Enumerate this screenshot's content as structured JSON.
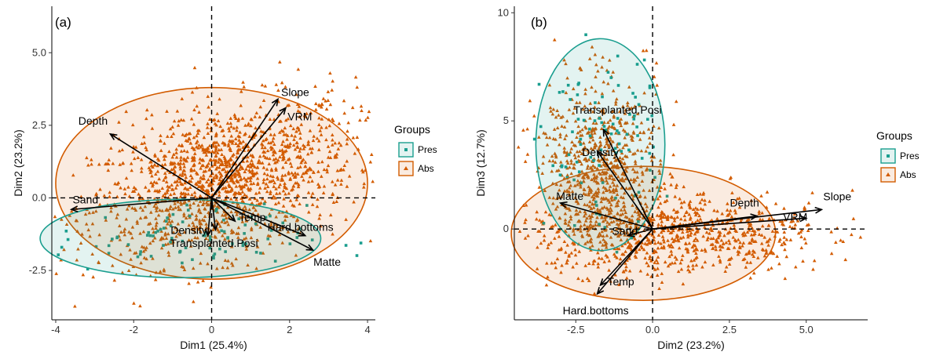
{
  "colors": {
    "pres": "#1a9e8f",
    "abs": "#d35c00",
    "arrow": "#000000",
    "axis": "#000000"
  },
  "legend": {
    "title": "Groups",
    "items": [
      "Pres",
      "Abs"
    ]
  },
  "chart_data": [
    {
      "type": "scatter",
      "panel_label": "(a)",
      "xlabel": "Dim1 (25.4%)",
      "ylabel": "Dim2 (23.2%)",
      "xlim": [
        -4.1,
        4.2
      ],
      "ylim": [
        -4.2,
        6.6
      ],
      "xticks": [
        -4,
        -2,
        0,
        2,
        4
      ],
      "xtick_labels": [
        "-4",
        "-2",
        "0",
        "2",
        "4"
      ],
      "yticks": [
        -2.5,
        0,
        2.5,
        5
      ],
      "ytick_labels": [
        "-2.5",
        "0.0",
        "2.5",
        "5.0"
      ],
      "arrows": [
        {
          "label": "Slope",
          "x": 1.7,
          "y": 3.4
        },
        {
          "label": "VRM",
          "x": 1.9,
          "y": 3.1
        },
        {
          "label": "Depth",
          "x": -2.6,
          "y": 2.2
        },
        {
          "label": "Sand",
          "x": -3.6,
          "y": -0.4
        },
        {
          "label": "Density",
          "x": -0.1,
          "y": -1.3
        },
        {
          "label": "Temp",
          "x": 0.6,
          "y": -0.8
        },
        {
          "label": "Transplanted.Posi",
          "x": 0.1,
          "y": -1.1
        },
        {
          "label": "Hard.bottoms",
          "x": 2.4,
          "y": -1.3
        },
        {
          "label": "Matte",
          "x": 2.6,
          "y": -1.8
        }
      ],
      "ellipses": [
        {
          "group": "Abs",
          "cx": 0.0,
          "cy": 0.5,
          "rx": 4.0,
          "ry": 3.3
        },
        {
          "group": "Pres",
          "cx": -0.8,
          "cy": -1.4,
          "rx": 3.6,
          "ry": 1.35
        }
      ]
    },
    {
      "type": "scatter",
      "panel_label": "(b)",
      "xlabel": "Dim2 (23.2%)",
      "ylabel": "Dim3 (12.7%)",
      "xlim": [
        -4.5,
        7.0
      ],
      "ylim": [
        -4.2,
        10.3
      ],
      "xticks": [
        -2.5,
        0,
        2.5,
        5
      ],
      "xtick_labels": [
        "-2.5",
        "0.0",
        "2.5",
        "5.0"
      ],
      "yticks": [
        0,
        5,
        10
      ],
      "ytick_labels": [
        "0",
        "5",
        "10"
      ],
      "arrows": [
        {
          "label": "Transplanted.Posi",
          "x": -1.6,
          "y": 4.6
        },
        {
          "label": "Density",
          "x": -1.8,
          "y": 3.6
        },
        {
          "label": "Matte",
          "x": -3.0,
          "y": 1.2
        },
        {
          "label": "Sand",
          "x": -0.8,
          "y": -0.3
        },
        {
          "label": "Depth",
          "x": 3.4,
          "y": 0.6
        },
        {
          "label": "Slope",
          "x": 5.5,
          "y": 0.9
        },
        {
          "label": "VRM",
          "x": 5.0,
          "y": 0.5
        },
        {
          "label": "Temp",
          "x": -1.7,
          "y": -2.6
        },
        {
          "label": "Hard.bottoms",
          "x": -1.8,
          "y": -3.0
        }
      ],
      "ellipses": [
        {
          "group": "Abs",
          "cx": -0.3,
          "cy": -0.2,
          "rx": 4.3,
          "ry": 3.1
        },
        {
          "group": "Pres",
          "cx": -1.7,
          "cy": 3.9,
          "rx": 2.1,
          "ry": 4.9
        }
      ]
    }
  ]
}
